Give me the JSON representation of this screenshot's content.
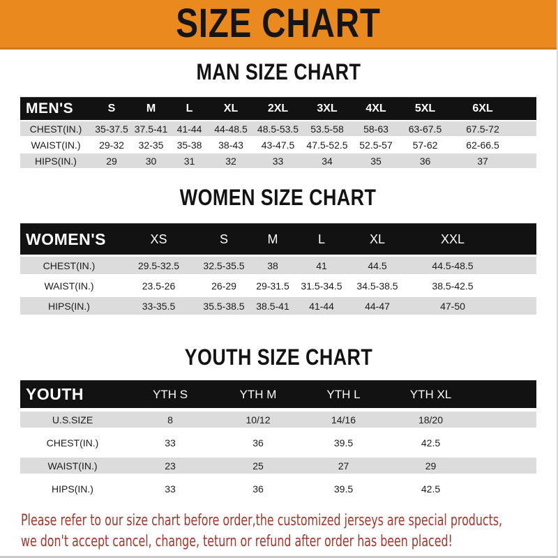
{
  "banner": {
    "title": "SIZE CHART"
  },
  "sections": [
    {
      "title": "MAN SIZE CHART",
      "header_label": "MEN'S",
      "columns": [
        "S",
        "M",
        "L",
        "XL",
        "2XL",
        "3XL",
        "4XL",
        "5XL",
        "6XL"
      ],
      "rows": [
        {
          "label": "CHEST(IN.)",
          "values": [
            "35-37.5",
            "37.5-41",
            "41-44",
            "44-48.5",
            "48.5-53.5",
            "53.5-58",
            "58-63",
            "63-67.5",
            "67.5-72"
          ]
        },
        {
          "label": "WAIST(IN.)",
          "values": [
            "29-32",
            "32-35",
            "35-38",
            "38-43",
            "43-47.5",
            "47.5-52.5",
            "52.5-57",
            "57-62",
            "62-66.5"
          ]
        },
        {
          "label": "HIPS(IN.)",
          "values": [
            "29",
            "30",
            "31",
            "32",
            "33",
            "34",
            "35",
            "36",
            "37"
          ]
        }
      ]
    },
    {
      "title": "WOMEN SIZE CHART",
      "header_label": "WOMEN'S",
      "columns": [
        "XS",
        "S",
        "M",
        "L",
        "XL",
        "XXL"
      ],
      "rows": [
        {
          "label": "CHEST(IN.)",
          "values": [
            "29.5-32.5",
            "32.5-35.5",
            "38",
            "41",
            "44.5",
            "44.5-48.5"
          ]
        },
        {
          "label": "WAIST(IN.)",
          "values": [
            "23.5-26",
            "26-29",
            "29-31.5",
            "31.5-34.5",
            "34.5-38.5",
            "38.5-42.5"
          ]
        },
        {
          "label": "HIPS(IN.)",
          "values": [
            "33-35.5",
            "35.5-38.5",
            "38.5-41",
            "41-44",
            "44-47",
            "47-50"
          ]
        }
      ]
    },
    {
      "title": "YOUTH SIZE CHART",
      "header_label": "YOUTH",
      "columns": [
        "YTH S",
        "YTH M",
        "YTH L",
        "YTH XL"
      ],
      "rows": [
        {
          "label": "U.S.SIZE",
          "values": [
            "8",
            "10/12",
            "14/16",
            "18/20"
          ]
        },
        {
          "label": "CHEST(IN.)",
          "values": [
            "33",
            "36",
            "39.5",
            "42.5"
          ]
        },
        {
          "label": "WAIST(IN.)",
          "values": [
            "23",
            "25",
            "27",
            "29"
          ]
        },
        {
          "label": "HIPS(IN.)",
          "values": [
            "33",
            "36",
            "39.5",
            "42.5"
          ]
        }
      ]
    }
  ],
  "footer": {
    "line1": "Please refer to our size chart before order,the customized jerseys are special products,",
    "line2": "we don't accept cancel, change, teturn or refund after order has been placed!"
  },
  "colors": {
    "accent_orange": "#EA8A1E",
    "table_header_bg": "#121212",
    "row_stripe_gray": "#DCDCDC",
    "note_red": "#A8352A"
  }
}
